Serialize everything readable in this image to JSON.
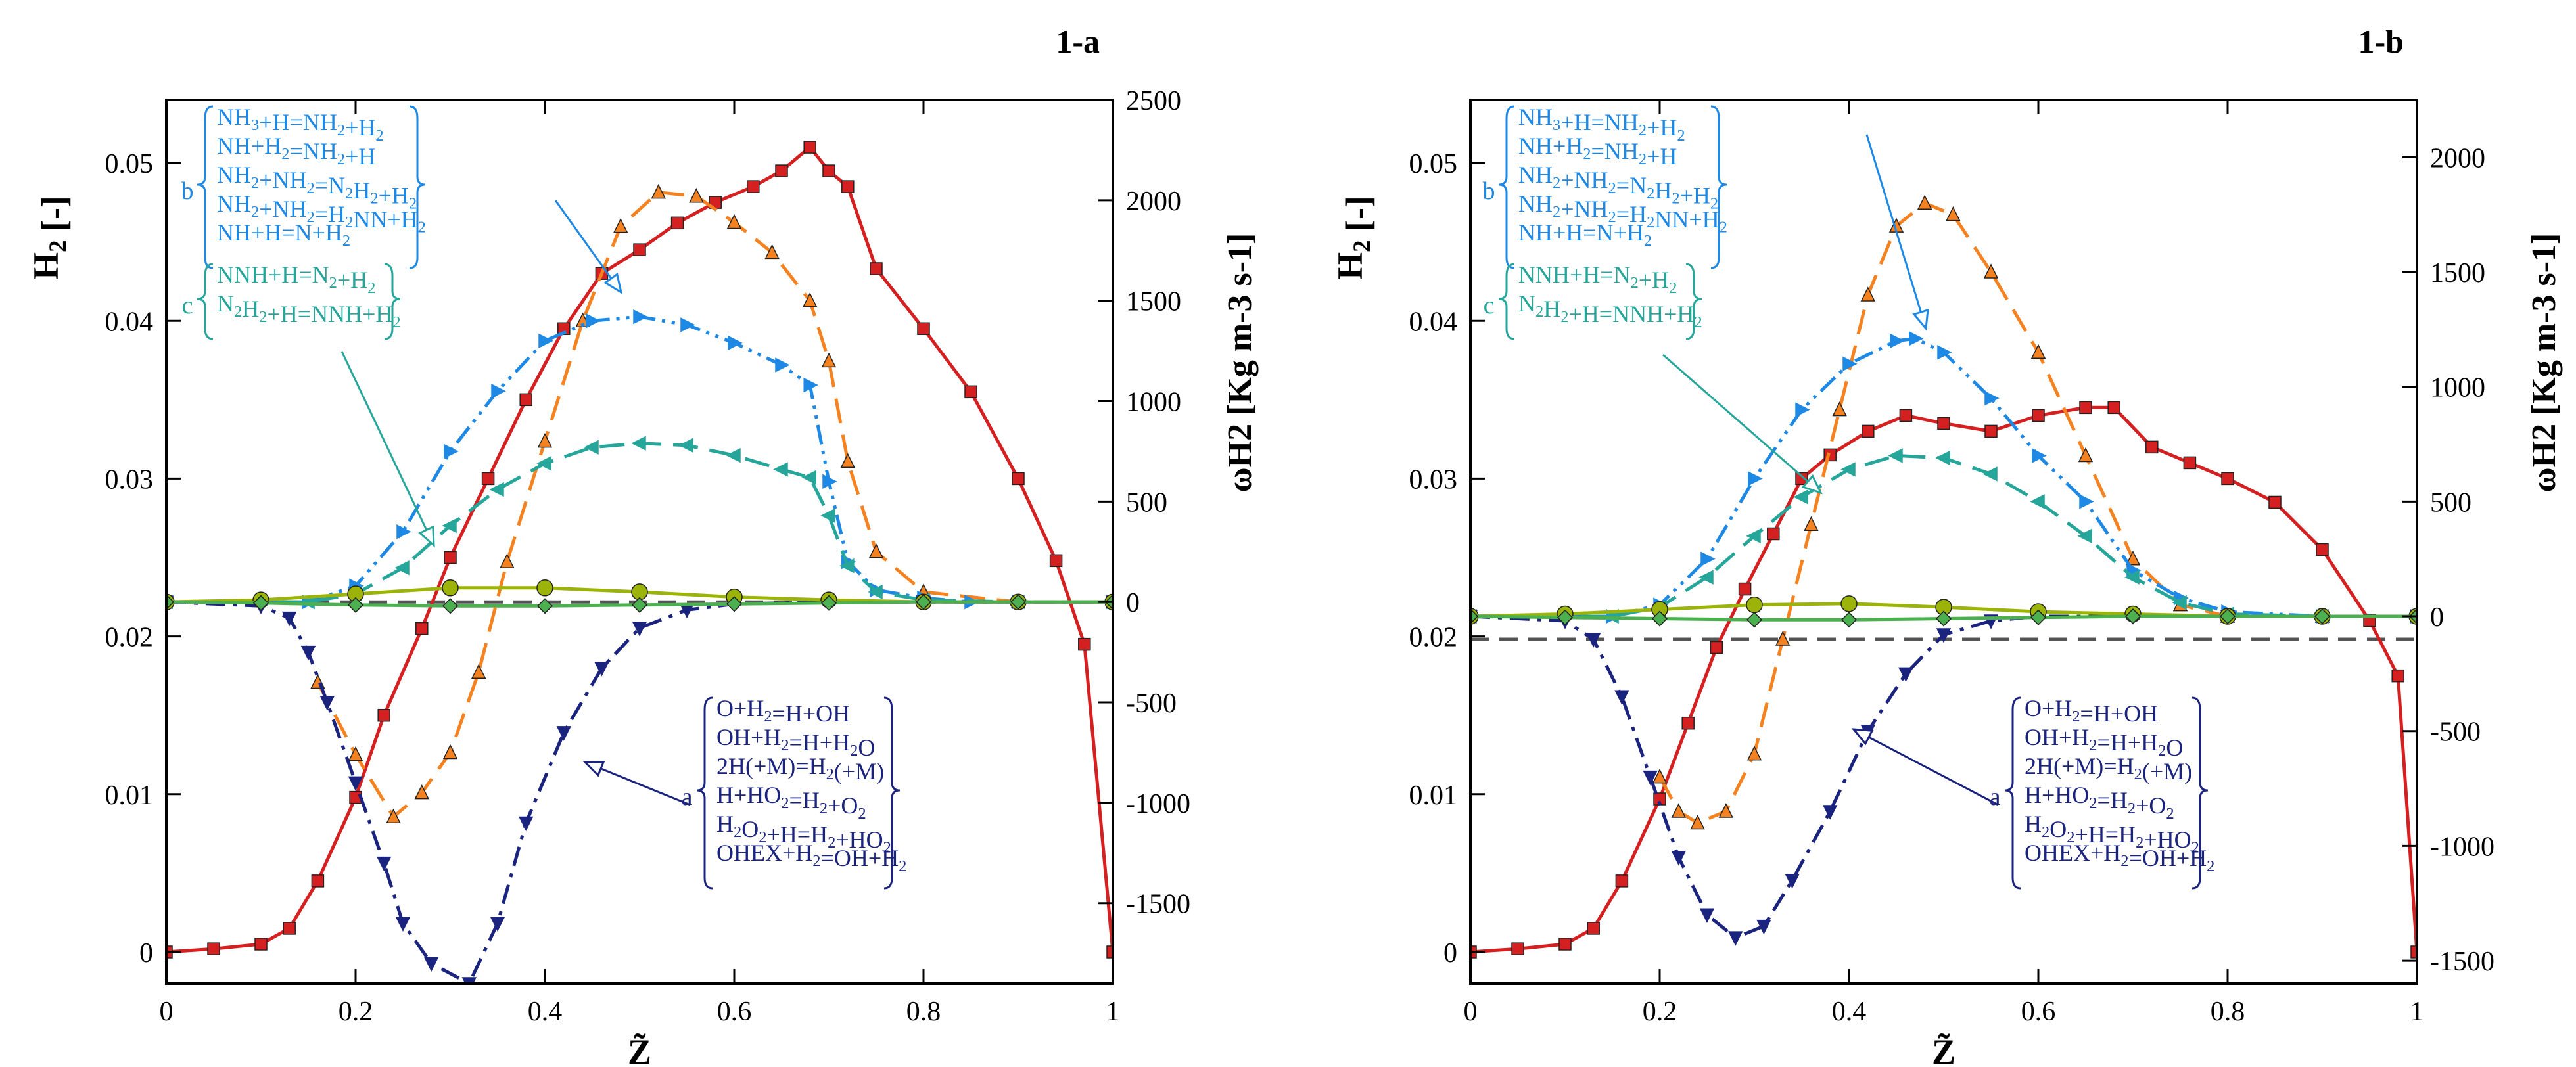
{
  "chart_data": [
    {
      "panel_label": "1-a",
      "type": "line",
      "xlabel": "Z̃",
      "ylabel_left": "H2 [-]",
      "ylabel_right": "ωH2 [Kg m-3 s-1]",
      "xlim": [
        0,
        1
      ],
      "ylim_left": [
        -0.002,
        0.054
      ],
      "ylim_right": [
        -1900,
        2500
      ],
      "xticks": [
        "0",
        "0.2",
        "0.4",
        "0.6",
        "0.8",
        "1"
      ],
      "yticks_left": [
        "0",
        "0.01",
        "0.02",
        "0.03",
        "0.04",
        "0.05"
      ],
      "yticks_right": [
        "-1500",
        "-1000",
        "-500",
        "0",
        "500",
        "1000",
        "1500",
        "2000",
        "2500"
      ],
      "zero_reference_line": {
        "axis": "right",
        "value": 0
      },
      "series": [
        {
          "axis": "left",
          "color": "#d42020",
          "dash": "solid",
          "marker": "square",
          "x": [
            0,
            0.05,
            0.1,
            0.13,
            0.16,
            0.2,
            0.23,
            0.27,
            0.3,
            0.34,
            0.38,
            0.42,
            0.46,
            0.5,
            0.54,
            0.58,
            0.62,
            0.65,
            0.68,
            0.7,
            0.72,
            0.75,
            0.8,
            0.85,
            0.9,
            0.94,
            0.97,
            1.0
          ],
          "y": [
            0,
            0.0002,
            0.0005,
            0.0015,
            0.0045,
            0.0098,
            0.015,
            0.0205,
            0.025,
            0.03,
            0.035,
            0.0395,
            0.043,
            0.0445,
            0.0462,
            0.0475,
            0.0485,
            0.0495,
            0.051,
            0.0495,
            0.0485,
            0.0433,
            0.0395,
            0.0355,
            0.03,
            0.0248,
            0.0195,
            0.0
          ]
        },
        {
          "axis": "right",
          "color": "#f58220",
          "dash": "long",
          "marker": "triangle-up",
          "x": [
            0.16,
            0.2,
            0.24,
            0.27,
            0.3,
            0.33,
            0.36,
            0.4,
            0.44,
            0.48,
            0.52,
            0.56,
            0.6,
            0.64,
            0.68,
            0.7,
            0.72,
            0.75,
            0.8,
            0.9,
            1.0
          ],
          "y": [
            -400,
            -760,
            -1070,
            -950,
            -750,
            -350,
            200,
            800,
            1400,
            1870,
            2040,
            2020,
            1890,
            1740,
            1500,
            1200,
            700,
            250,
            50,
            0,
            0
          ]
        },
        {
          "axis": "right",
          "color": "#1e88e5",
          "dash": "dash-dot-dot",
          "marker": "triangle-right",
          "x": [
            0,
            0.15,
            0.2,
            0.25,
            0.3,
            0.35,
            0.4,
            0.45,
            0.5,
            0.55,
            0.6,
            0.65,
            0.68,
            0.7,
            0.72,
            0.75,
            0.8,
            0.85,
            0.9,
            1.0
          ],
          "y": [
            0,
            0,
            80,
            350,
            750,
            1050,
            1300,
            1400,
            1420,
            1380,
            1290,
            1180,
            1080,
            600,
            200,
            60,
            20,
            0,
            0,
            0
          ]
        },
        {
          "axis": "right",
          "color": "#26a69a",
          "dash": "long",
          "marker": "triangle-left",
          "x": [
            0,
            0.15,
            0.2,
            0.25,
            0.3,
            0.35,
            0.4,
            0.45,
            0.5,
            0.55,
            0.6,
            0.65,
            0.68,
            0.7,
            0.72,
            0.75,
            0.8,
            0.9,
            1.0
          ],
          "y": [
            0,
            0,
            40,
            170,
            380,
            560,
            690,
            770,
            790,
            780,
            730,
            660,
            620,
            430,
            180,
            50,
            10,
            0,
            0
          ]
        },
        {
          "axis": "right",
          "color": "#1a237e",
          "dash": "dash-dot",
          "marker": "triangle-down",
          "x": [
            0,
            0.1,
            0.13,
            0.15,
            0.17,
            0.2,
            0.23,
            0.25,
            0.28,
            0.32,
            0.35,
            0.38,
            0.42,
            0.46,
            0.5,
            0.55,
            0.6,
            0.7,
            0.8,
            1.0
          ],
          "y": [
            0,
            -20,
            -80,
            -250,
            -500,
            -900,
            -1300,
            -1600,
            -1800,
            -1900,
            -1600,
            -1100,
            -650,
            -330,
            -130,
            -40,
            -10,
            0,
            0,
            0
          ]
        },
        {
          "axis": "right",
          "color": "#9cb40a",
          "dash": "solid",
          "marker": "circle",
          "x": [
            0,
            0.1,
            0.2,
            0.3,
            0.4,
            0.5,
            0.6,
            0.7,
            0.8,
            0.9,
            1.0
          ],
          "y": [
            0,
            10,
            40,
            70,
            70,
            50,
            25,
            10,
            0,
            0,
            0
          ]
        },
        {
          "axis": "right",
          "color": "#4caf50",
          "dash": "solid",
          "marker": "diamond",
          "x": [
            0,
            0.1,
            0.2,
            0.3,
            0.4,
            0.5,
            0.6,
            0.7,
            0.8,
            0.9,
            1.0
          ],
          "y": [
            0,
            -5,
            -15,
            -20,
            -20,
            -15,
            -10,
            -5,
            0,
            0,
            0
          ]
        }
      ],
      "annotations": [
        {
          "label": "b",
          "color": "#1e88e5",
          "lines": [
            "NH3+H=NH2+H2",
            "NH+H2=NH2+H",
            "NH2+NH2=N2H2+H2",
            "NH2+NH2=H2NN+H2",
            "NH+H=N+H2"
          ]
        },
        {
          "label": "c",
          "color": "#26a69a",
          "lines": [
            "NNH+H=N2+H2",
            "N2H2+H=NNH+H2"
          ]
        },
        {
          "label": "a",
          "color": "#1a237e",
          "lines": [
            "O+H2=H+OH",
            "OH+H2=H+H2O",
            "2H(+M)=H2(+M)",
            "H+HO2=H2+O2",
            "H2O2+H=H2+HO2",
            "OHEX+H2=OH+H2"
          ]
        }
      ]
    },
    {
      "panel_label": "1-b",
      "type": "line",
      "xlabel": "Z̃",
      "ylabel_left": "H2 [-]",
      "ylabel_right": "ωH2 [Kg m-3 s-1]",
      "xlim": [
        0,
        1
      ],
      "ylim_left": [
        -0.002,
        0.054
      ],
      "ylim_right": [
        -1600,
        2250
      ],
      "xticks": [
        "0",
        "0.2",
        "0.4",
        "0.6",
        "0.8",
        "1"
      ],
      "yticks_left": [
        "0",
        "0.01",
        "0.02",
        "0.03",
        "0.04",
        "0.05"
      ],
      "yticks_right": [
        "-1500",
        "-1000",
        "-500",
        "0",
        "500",
        "1000",
        "1500",
        "2000"
      ],
      "zero_reference_line": {
        "axis": "right",
        "value": -100
      },
      "series": [
        {
          "axis": "left",
          "color": "#d42020",
          "dash": "solid",
          "marker": "square",
          "x": [
            0,
            0.05,
            0.1,
            0.13,
            0.16,
            0.2,
            0.23,
            0.26,
            0.29,
            0.32,
            0.35,
            0.38,
            0.42,
            0.46,
            0.5,
            0.55,
            0.6,
            0.65,
            0.68,
            0.72,
            0.76,
            0.8,
            0.85,
            0.9,
            0.95,
            0.98,
            1.0
          ],
          "y": [
            0,
            0.0002,
            0.0005,
            0.0015,
            0.0045,
            0.0097,
            0.0145,
            0.0193,
            0.023,
            0.0265,
            0.03,
            0.0315,
            0.033,
            0.034,
            0.0335,
            0.033,
            0.034,
            0.0345,
            0.0345,
            0.032,
            0.031,
            0.03,
            0.0285,
            0.0255,
            0.021,
            0.0175,
            0.0
          ]
        },
        {
          "axis": "right",
          "color": "#f58220",
          "dash": "long",
          "marker": "triangle-up",
          "x": [
            0.2,
            0.22,
            0.24,
            0.27,
            0.3,
            0.33,
            0.36,
            0.39,
            0.42,
            0.45,
            0.48,
            0.51,
            0.55,
            0.6,
            0.65,
            0.7,
            0.75,
            0.8,
            0.9,
            1.0
          ],
          "y": [
            -700,
            -850,
            -900,
            -850,
            -600,
            -100,
            400,
            900,
            1400,
            1700,
            1800,
            1750,
            1500,
            1150,
            700,
            250,
            50,
            0,
            0,
            0
          ]
        },
        {
          "axis": "right",
          "color": "#1e88e5",
          "dash": "dash-dot-dot",
          "marker": "triangle-right",
          "x": [
            0,
            0.15,
            0.2,
            0.25,
            0.3,
            0.35,
            0.4,
            0.45,
            0.47,
            0.5,
            0.55,
            0.6,
            0.65,
            0.7,
            0.75,
            0.8,
            0.9,
            1.0
          ],
          "y": [
            0,
            0,
            50,
            250,
            600,
            900,
            1100,
            1200,
            1210,
            1150,
            950,
            700,
            500,
            200,
            80,
            20,
            0,
            0
          ]
        },
        {
          "axis": "right",
          "color": "#26a69a",
          "dash": "long",
          "marker": "triangle-left",
          "x": [
            0,
            0.15,
            0.2,
            0.25,
            0.3,
            0.35,
            0.4,
            0.45,
            0.5,
            0.55,
            0.6,
            0.65,
            0.7,
            0.75,
            0.8,
            0.9,
            1.0
          ],
          "y": [
            0,
            0,
            40,
            170,
            350,
            520,
            640,
            700,
            690,
            620,
            500,
            350,
            170,
            60,
            10,
            0,
            0
          ]
        },
        {
          "axis": "right",
          "color": "#1a237e",
          "dash": "dash-dot",
          "marker": "triangle-down",
          "x": [
            0,
            0.1,
            0.13,
            0.16,
            0.19,
            0.22,
            0.25,
            0.28,
            0.31,
            0.34,
            0.38,
            0.42,
            0.46,
            0.5,
            0.55,
            0.6,
            0.7,
            0.8,
            1.0
          ],
          "y": [
            0,
            -20,
            -100,
            -350,
            -700,
            -1050,
            -1300,
            -1400,
            -1350,
            -1150,
            -850,
            -500,
            -250,
            -80,
            -20,
            0,
            0,
            0,
            0
          ]
        },
        {
          "axis": "right",
          "color": "#9cb40a",
          "dash": "solid",
          "marker": "circle",
          "x": [
            0,
            0.1,
            0.2,
            0.3,
            0.4,
            0.5,
            0.6,
            0.7,
            0.8,
            0.9,
            1.0
          ],
          "y": [
            0,
            10,
            30,
            50,
            55,
            40,
            20,
            10,
            0,
            0,
            0
          ]
        },
        {
          "axis": "right",
          "color": "#4caf50",
          "dash": "solid",
          "marker": "diamond",
          "x": [
            0,
            0.1,
            0.2,
            0.3,
            0.4,
            0.5,
            0.6,
            0.7,
            0.8,
            0.9,
            1.0
          ],
          "y": [
            0,
            -5,
            -10,
            -15,
            -15,
            -10,
            -5,
            0,
            0,
            0,
            0
          ]
        }
      ],
      "annotations": [
        {
          "label": "b",
          "color": "#1e88e5",
          "lines": [
            "NH3+H=NH2+H2",
            "NH+H2=NH2+H",
            "NH2+NH2=N2H2+H2",
            "NH2+NH2=H2NN+H2",
            "NH+H=N+H2"
          ]
        },
        {
          "label": "c",
          "color": "#26a69a",
          "lines": [
            "NNH+H=N2+H2",
            "N2H2+H=NNH+H2"
          ]
        },
        {
          "label": "a",
          "color": "#1a237e",
          "lines": [
            "O+H2=H+OH",
            "OH+H2=H+H2O",
            "2H(+M)=H2(+M)",
            "H+HO2=H2+O2",
            "H2O2+H=H2+HO2",
            "OHEX+H2=OH+H2"
          ]
        }
      ]
    }
  ]
}
